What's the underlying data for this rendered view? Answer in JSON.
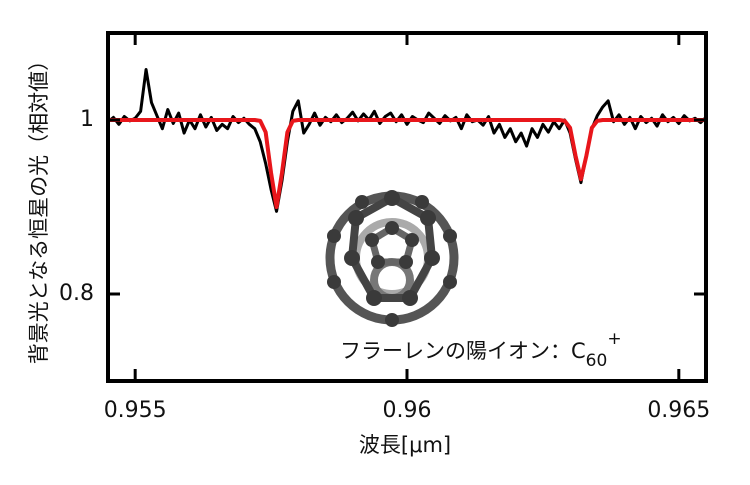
{
  "chart_data": {
    "type": "line",
    "xlabel": "波長[μm]",
    "ylabel": "背景光となる恒星の光（相対値）",
    "annotation": {
      "text": "フラーレンの陽イオン：C",
      "sub": "60",
      "sup": "+"
    },
    "x": [
      0.9545,
      0.9546,
      0.9547,
      0.9548,
      0.9549,
      0.955,
      0.9551,
      0.9552,
      0.9553,
      0.9554,
      0.9555,
      0.9556,
      0.9557,
      0.9558,
      0.9559,
      0.956,
      0.9561,
      0.9562,
      0.9563,
      0.9564,
      0.9565,
      0.9566,
      0.9567,
      0.9568,
      0.9569,
      0.957,
      0.9571,
      0.9572,
      0.9573,
      0.9574,
      0.9575,
      0.9576,
      0.9577,
      0.9578,
      0.9579,
      0.958,
      0.9581,
      0.9582,
      0.9583,
      0.9584,
      0.9585,
      0.9586,
      0.9587,
      0.9588,
      0.9589,
      0.959,
      0.9591,
      0.9592,
      0.9593,
      0.9594,
      0.9595,
      0.9596,
      0.9597,
      0.9598,
      0.9599,
      0.96,
      0.9601,
      0.9602,
      0.9603,
      0.9604,
      0.9605,
      0.9606,
      0.9607,
      0.9608,
      0.9609,
      0.961,
      0.9611,
      0.9612,
      0.9613,
      0.9614,
      0.9615,
      0.9616,
      0.9617,
      0.9618,
      0.9619,
      0.962,
      0.9621,
      0.9622,
      0.9623,
      0.9624,
      0.9625,
      0.9626,
      0.9627,
      0.9628,
      0.9629,
      0.963,
      0.9631,
      0.9632,
      0.9633,
      0.9634,
      0.9635,
      0.9636,
      0.9637,
      0.9638,
      0.9639,
      0.964,
      0.9641,
      0.9642,
      0.9643,
      0.9644,
      0.9645,
      0.9646,
      0.9647,
      0.9648,
      0.9649,
      0.965,
      0.9651,
      0.9652,
      0.9653,
      0.9654,
      0.9655
    ],
    "series": [
      {
        "color": "#000000",
        "width": 3,
        "values": [
          0.998,
          1.003,
          0.995,
          1.004,
          0.999,
          1.002,
          1.01,
          1.058,
          1.02,
          1.005,
          0.99,
          1.012,
          0.996,
          1.008,
          0.985,
          1.0,
          0.99,
          1.006,
          0.992,
          1.003,
          0.988,
          0.995,
          0.99,
          1.004,
          0.997,
          1.002,
          0.995,
          0.99,
          0.975,
          0.95,
          0.92,
          0.895,
          0.93,
          0.975,
          1.01,
          1.022,
          0.985,
          0.995,
          1.008,
          0.994,
          1.003,
          0.998,
          1.006,
          0.997,
          1.002,
          1.009,
          0.999,
          1.007,
          1.0,
          1.01,
          0.996,
          1.004,
          1.008,
          0.998,
          1.006,
          0.995,
          1.004,
          1.0,
          0.997,
          1.008,
          1.002,
          0.996,
          1.005,
          0.999,
          1.003,
          0.99,
          1.006,
          0.998,
          1.0,
          0.994,
          1.004,
          0.985,
          0.995,
          0.98,
          0.99,
          0.975,
          0.985,
          0.97,
          0.99,
          0.98,
          0.995,
          0.986,
          0.998,
          0.99,
          1.0,
          0.985,
          0.955,
          0.928,
          0.96,
          0.99,
          1.005,
          1.015,
          1.022,
          0.998,
          1.006,
          0.995,
          1.003,
          0.99,
          1.004,
          0.997,
          1.002,
          0.993,
          1.006,
          0.998,
          1.003,
          0.996,
          1.005,
          0.999,
          1.002,
          0.997,
          1.003
        ]
      },
      {
        "color": "#e8161b",
        "width": 4,
        "values": [
          1,
          1,
          1,
          1,
          1,
          1,
          1,
          1,
          1,
          1,
          1,
          1,
          1,
          1,
          1,
          1,
          1,
          1,
          1,
          1,
          1,
          1,
          1,
          1,
          1,
          1,
          1,
          1,
          0.999,
          0.986,
          0.939,
          0.9,
          0.939,
          0.986,
          0.999,
          1,
          1,
          1,
          1,
          1,
          1,
          1,
          1,
          1,
          1,
          1,
          1,
          1,
          1,
          1,
          1,
          1,
          1,
          1,
          1,
          1,
          1,
          1,
          1,
          1,
          1,
          1,
          1,
          1,
          1,
          1,
          1,
          1,
          1,
          1,
          1,
          1,
          1,
          1,
          1,
          1,
          1,
          1,
          1,
          1,
          1,
          1,
          1,
          1,
          0.999,
          0.991,
          0.959,
          0.932,
          0.959,
          0.991,
          0.999,
          1,
          1,
          1,
          1,
          1,
          1,
          1,
          1,
          1,
          1,
          1,
          1,
          1,
          1,
          1,
          1,
          1,
          1,
          1,
          1
        ]
      }
    ],
    "xlim": [
      0.9545,
      0.9655
    ],
    "xticks": [
      0.955,
      0.96,
      0.965
    ],
    "ylim": [
      0.7,
      1.1
    ],
    "yticks": [
      0.8,
      1
    ]
  }
}
